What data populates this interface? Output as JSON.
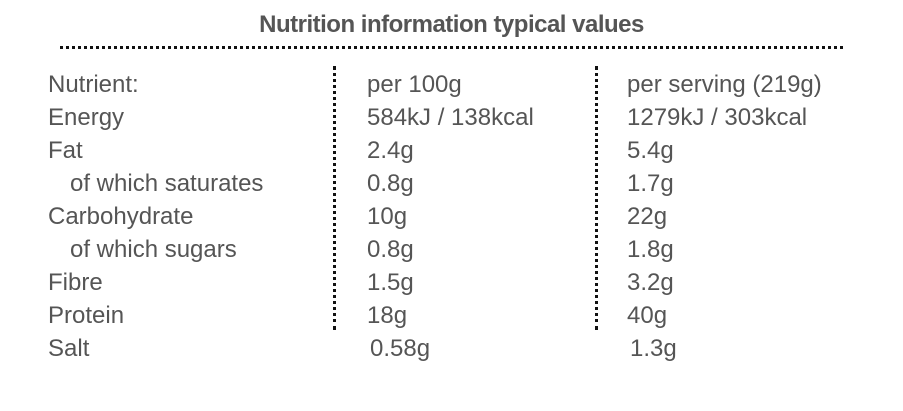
{
  "title": "Nutrition information typical values",
  "headers": [
    "Nutrient:",
    "per 100g",
    "per serving (219g)"
  ],
  "rows": [
    {
      "nutrient": "Energy",
      "per100": "584kJ / 138kcal",
      "serving": "1279kJ / 303kcal",
      "indent": false
    },
    {
      "nutrient": "Fat",
      "per100": "2.4g",
      "serving": "5.4g",
      "indent": false
    },
    {
      "nutrient": "of which saturates",
      "per100": "0.8g",
      "serving": "1.7g",
      "indent": true
    },
    {
      "nutrient": "Carbohydrate",
      "per100": "10g",
      "serving": "22g",
      "indent": false
    },
    {
      "nutrient": "of which sugars",
      "per100": "0.8g",
      "serving": "1.8g",
      "indent": true
    },
    {
      "nutrient": "Fibre",
      "per100": "1.5g",
      "serving": "3.2g",
      "indent": false
    },
    {
      "nutrient": "Protein",
      "per100": "18g",
      "serving": "40g",
      "indent": false
    },
    {
      "nutrient": "Salt",
      "per100": "0.58g",
      "serving": "1.3g",
      "indent": false
    }
  ]
}
